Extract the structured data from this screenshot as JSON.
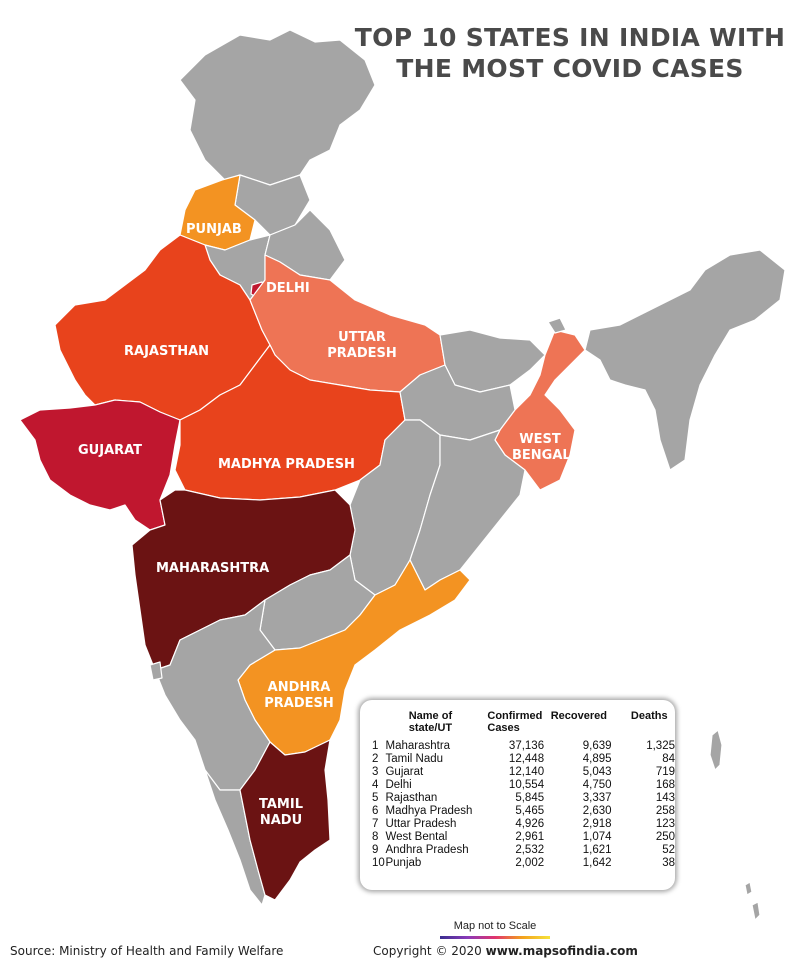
{
  "title_line1": "TOP 10 STATES IN INDIA WITH",
  "title_line2": "THE MOST COVID CASES",
  "colors": {
    "other_states": "#a5a5a5",
    "tier_highest": "#6b1313",
    "tier_high": "#c0172f",
    "tier_mid": "#e8431c",
    "tier_low": "#ee7455",
    "tier_lowest": "#f39322",
    "border": "#ffffff"
  },
  "map_labels": {
    "punjab": "PUNJAB",
    "delhi": "DELHI",
    "rajasthan": "RAJASTHAN",
    "uttar_pradesh_1": "UTTAR",
    "uttar_pradesh_2": "PRADESH",
    "gujarat": "GUJARAT",
    "madhya_pradesh": "MADHYA PRADESH",
    "west_bengal_1": "WEST",
    "west_bengal_2": "BENGAL",
    "maharashtra": "MAHARASHTRA",
    "andhra_pradesh_1": "ANDHRA",
    "andhra_pradesh_2": "PRADESH",
    "tamil_nadu_1": "TAMIL",
    "tamil_nadu_2": "NADU"
  },
  "table": {
    "headers": {
      "state_1": "Name of",
      "state_2": "state/UT",
      "confirmed_1": "Confirmed",
      "confirmed_2": "Cases",
      "recovered": "Recovered",
      "deaths": "Deaths"
    },
    "rows": [
      {
        "no": "1",
        "state": "Maharashtra",
        "confirmed": "37,136",
        "recovered": "9,639",
        "deaths": "1,325"
      },
      {
        "no": "2",
        "state": "Tamil Nadu",
        "confirmed": "12,448",
        "recovered": "4,895",
        "deaths": "84"
      },
      {
        "no": "3",
        "state": "Gujarat",
        "confirmed": "12,140",
        "recovered": "5,043",
        "deaths": "719"
      },
      {
        "no": "4",
        "state": "Delhi",
        "confirmed": "10,554",
        "recovered": "4,750",
        "deaths": "168"
      },
      {
        "no": "5",
        "state": "Rajasthan",
        "confirmed": "5,845",
        "recovered": "3,337",
        "deaths": "143"
      },
      {
        "no": "6",
        "state": "Madhya Pradesh",
        "confirmed": "5,465",
        "recovered": "2,630",
        "deaths": "258"
      },
      {
        "no": "7",
        "state": "Uttar Pradesh",
        "confirmed": "4,926",
        "recovered": "2,918",
        "deaths": "123"
      },
      {
        "no": "8",
        "state": "West Bental",
        "confirmed": "2,961",
        "recovered": "1,074",
        "deaths": "250"
      },
      {
        "no": "9",
        "state": "Andhra Pradesh",
        "confirmed": "2,532",
        "recovered": "1,621",
        "deaths": "52"
      },
      {
        "no": "10",
        "state": "Punjab",
        "confirmed": "2,002",
        "recovered": "1,642",
        "deaths": "38"
      }
    ]
  },
  "scale_note": "Map not to Scale",
  "source": "Source: Ministry of Health and Family Welfare",
  "copyright_prefix": "Copyright © 2020",
  "copyright_site": "www.mapsofindia.com"
}
